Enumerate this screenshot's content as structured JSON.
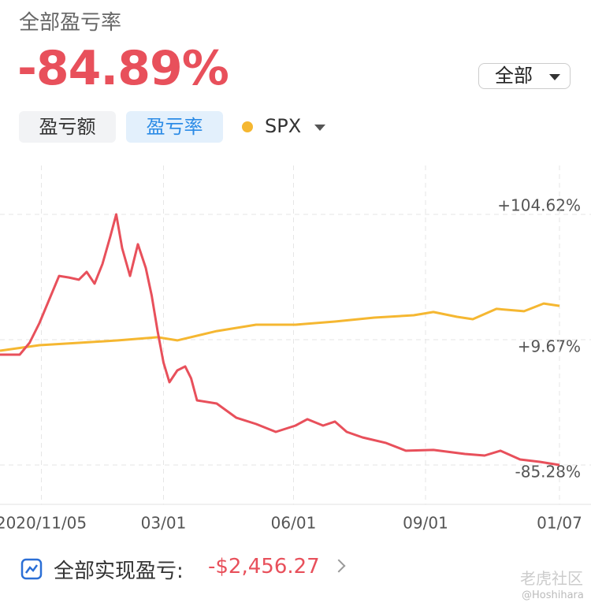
{
  "header": {
    "title": "全部盈亏率",
    "value": "-84.89%",
    "filter": "全部"
  },
  "tabs": [
    "盈亏额",
    "盈亏率"
  ],
  "chart_data": {
    "type": "line",
    "xlim": [
      0,
      300
    ],
    "xticks": [
      {
        "value": 21,
        "label": "2020/11/05"
      },
      {
        "value": 83,
        "label": "03/01"
      },
      {
        "value": 149,
        "label": "06/01"
      },
      {
        "value": 216,
        "label": "09/01"
      },
      {
        "value": 284,
        "label": "01/07"
      }
    ],
    "ylim": [
      -115.14,
      141.64
    ],
    "yticks": [
      {
        "value": 104.62,
        "label": "+104.62%"
      },
      {
        "value": 9.67,
        "label": "+9.67%"
      },
      {
        "value": -85.28,
        "label": "-85.28%"
      }
    ],
    "grid": true,
    "series": [
      {
        "color": "#e8505b",
        "x": [
          0,
          10,
          15,
          20,
          25,
          30,
          35,
          40,
          44,
          48,
          52,
          56,
          59,
          62,
          66,
          70,
          74,
          77,
          80,
          83,
          86,
          90,
          94,
          97,
          100,
          110,
          120,
          130,
          140,
          150,
          156,
          164,
          170,
          176,
          184,
          196,
          206,
          220,
          236,
          246,
          254,
          264,
          274,
          284
        ],
        "values": [
          -1.68,
          -1.7,
          7.3,
          22.2,
          40.1,
          58.0,
          56.8,
          55.1,
          61.0,
          52.1,
          67.0,
          87.9,
          104.6,
          79.0,
          58.0,
          82.0,
          64.0,
          43.1,
          16.2,
          -7.7,
          -22.6,
          -13.6,
          -10.6,
          -19.6,
          -36.3,
          -38.7,
          -49.5,
          -54.2,
          -60.2,
          -55.4,
          -50.6,
          -55.4,
          -52.4,
          -60.2,
          -64.4,
          -68.6,
          -74.5,
          -73.9,
          -76.9,
          -78.1,
          -74.5,
          -81.1,
          -82.9,
          -85.3
        ]
      },
      {
        "name": "SPX",
        "color": "#f5b731",
        "x": [
          0,
          20,
          40,
          60,
          80,
          90,
          110,
          130,
          150,
          170,
          190,
          210,
          220,
          232,
          240,
          252,
          266,
          276,
          284
        ],
        "values": [
          1.3,
          5.5,
          7.3,
          9.1,
          11.5,
          9.1,
          16.2,
          21.0,
          21.0,
          23.4,
          26.4,
          28.2,
          30.6,
          27.0,
          25.2,
          33.0,
          31.2,
          37.1,
          35.3
        ]
      }
    ]
  },
  "summary": {
    "label": "全部实现盈亏:",
    "value": "-$2,456.27"
  },
  "watermark": {
    "brand": "老虎社区",
    "user": "@Hoshihara"
  }
}
